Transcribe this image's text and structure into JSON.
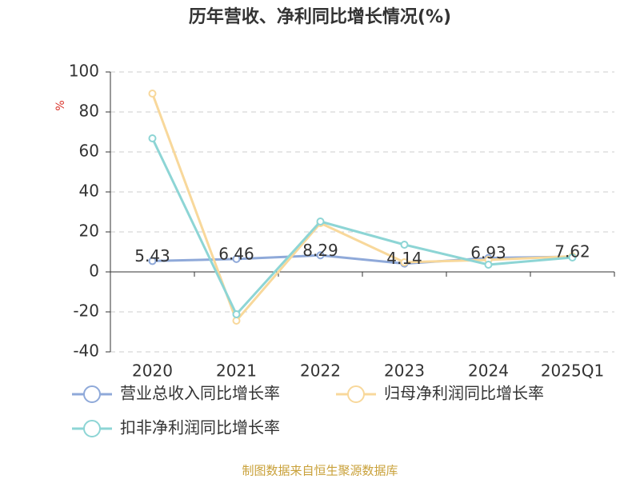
{
  "chart_data": {
    "type": "line",
    "title": "历年营收、净利同比增长情况(%)",
    "y_label": "%",
    "categories": [
      "2020",
      "2021",
      "2022",
      "2023",
      "2024",
      "2025Q1"
    ],
    "series": [
      {
        "name": "营业总收入同比增长率",
        "color": "#8fa9d9",
        "values": [
          5.43,
          6.46,
          8.29,
          4.14,
          6.93,
          7.62
        ],
        "data_labels": true
      },
      {
        "name": "归母净利润同比增长率",
        "color": "#f8d89b",
        "values": [
          89.2,
          -24.4,
          24.4,
          4.8,
          6,
          7.8
        ],
        "data_labels": false
      },
      {
        "name": "扣非净利润同比增长率",
        "color": "#8dd5d5",
        "values": [
          66.8,
          -21.2,
          25.2,
          13.6,
          3.6,
          7.2
        ],
        "data_labels": false
      }
    ],
    "ylim": [
      -40,
      100
    ],
    "yticks": [
      -40,
      -20,
      0,
      20,
      40,
      60,
      80,
      100
    ],
    "grid": true,
    "source": "制图数据来自恒生聚源数据库"
  }
}
